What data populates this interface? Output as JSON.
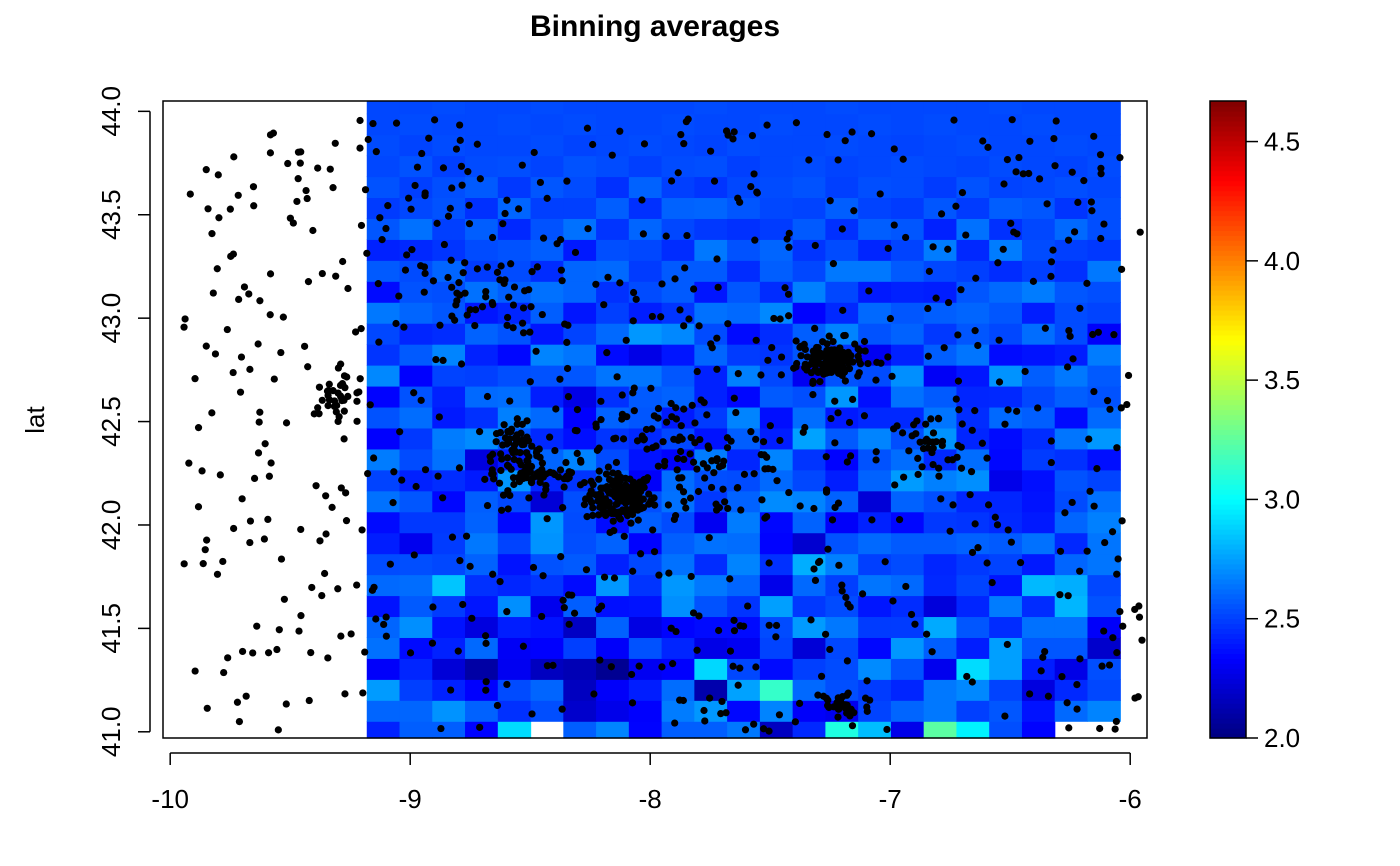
{
  "chart_data": {
    "type": "heatmap",
    "title": "Binning averages",
    "xlabel": "",
    "ylabel": "lat",
    "xlim": [
      -10.03,
      -5.93
    ],
    "ylim": [
      40.97,
      44.05
    ],
    "grid": false,
    "legend": "colorbar right",
    "x_ticks": [
      -10,
      -9,
      -8,
      -7,
      -6
    ],
    "x_tick_labels": [
      "-10",
      "-9",
      "-8",
      "-7",
      "-6"
    ],
    "y_ticks": [
      41.0,
      41.5,
      42.0,
      42.5,
      43.0,
      43.5,
      44.0
    ],
    "y_tick_labels": [
      "41.0",
      "41.5",
      "42.0",
      "42.5",
      "43.0",
      "43.5",
      "44.0"
    ],
    "colorbar": {
      "range": [
        2.0,
        4.67
      ],
      "ticks": [
        2.0,
        2.5,
        3.0,
        3.5,
        4.0,
        4.5
      ],
      "tick_labels": [
        "2.0",
        "2.5",
        "3.0",
        "3.5",
        "4.0",
        "4.5"
      ],
      "palette": [
        "#00007F",
        "#0000FF",
        "#007FFF",
        "#00FFFF",
        "#7FFF7F",
        "#FFFF00",
        "#FF7F00",
        "#FF0000",
        "#7F0000"
      ]
    },
    "bins": {
      "x0": -10.0,
      "y0": 40.95,
      "dx": 0.1365,
      "dy": 0.1013,
      "ncol": 29,
      "nrow": 31,
      "values": [
        [
          null,
          null,
          null,
          null,
          null,
          null,
          2.42,
          2.58,
          2.58,
          2.34,
          2.91,
          null,
          2.58,
          2.68,
          2.34,
          2.58,
          2.58,
          2.65,
          2.17,
          2.44,
          3.08,
          2.83,
          2.28,
          3.24,
          2.97,
          2.54,
          2.34,
          null,
          null
        ],
        [
          null,
          null,
          null,
          null,
          null,
          null,
          2.6,
          2.6,
          2.72,
          2.59,
          2.46,
          2.54,
          2.2,
          2.28,
          2.33,
          2.66,
          2.73,
          2.35,
          2.68,
          2.32,
          2.29,
          2.51,
          2.6,
          2.65,
          2.5,
          2.56,
          2.38,
          2.61,
          2.68
        ],
        [
          null,
          null,
          null,
          null,
          null,
          null,
          2.74,
          2.5,
          2.42,
          2.33,
          2.53,
          2.6,
          2.17,
          2.32,
          2.41,
          2.62,
          2.12,
          2.76,
          3.14,
          2.61,
          2.54,
          2.49,
          2.43,
          2.65,
          2.69,
          2.51,
          2.25,
          2.44,
          2.52
        ],
        [
          null,
          null,
          null,
          null,
          null,
          null,
          2.32,
          2.43,
          2.23,
          2.1,
          2.3,
          2.17,
          2.14,
          2.05,
          2.3,
          2.33,
          2.9,
          2.52,
          2.36,
          2.5,
          2.53,
          2.7,
          2.55,
          2.29,
          2.91,
          2.75,
          2.41,
          2.27,
          2.54
        ],
        [
          null,
          null,
          null,
          null,
          null,
          null,
          2.63,
          2.36,
          2.42,
          2.61,
          2.31,
          2.33,
          2.5,
          2.32,
          2.55,
          2.43,
          2.27,
          2.3,
          2.51,
          2.23,
          2.52,
          2.35,
          2.73,
          2.58,
          2.41,
          2.75,
          2.56,
          2.56,
          2.2
        ],
        [
          null,
          null,
          null,
          null,
          null,
          null,
          2.6,
          2.71,
          2.38,
          2.25,
          2.41,
          2.38,
          2.18,
          2.59,
          2.26,
          2.34,
          2.36,
          2.36,
          2.53,
          2.74,
          2.65,
          2.49,
          2.49,
          2.78,
          2.56,
          2.45,
          2.63,
          2.63,
          2.32
        ],
        [
          null,
          null,
          null,
          null,
          null,
          null,
          2.38,
          2.57,
          2.49,
          2.39,
          2.71,
          2.29,
          2.58,
          2.37,
          2.38,
          2.71,
          2.55,
          2.47,
          2.75,
          2.48,
          2.53,
          2.39,
          2.45,
          2.24,
          2.43,
          2.66,
          2.45,
          2.81,
          2.55
        ],
        [
          null,
          null,
          null,
          null,
          null,
          null,
          2.61,
          2.62,
          2.85,
          2.46,
          2.43,
          2.47,
          2.36,
          2.73,
          2.47,
          2.73,
          2.65,
          2.6,
          2.28,
          2.61,
          2.5,
          2.64,
          2.61,
          2.44,
          2.51,
          2.39,
          2.82,
          2.79,
          2.52
        ],
        [
          null,
          null,
          null,
          null,
          null,
          null,
          2.53,
          2.54,
          2.52,
          2.59,
          2.38,
          2.55,
          2.57,
          2.42,
          2.52,
          2.63,
          2.45,
          2.68,
          2.46,
          2.79,
          2.67,
          2.5,
          2.53,
          2.43,
          2.48,
          2.51,
          2.4,
          2.6,
          2.64
        ],
        [
          null,
          null,
          null,
          null,
          null,
          null,
          2.41,
          2.29,
          2.49,
          2.65,
          2.51,
          2.72,
          2.54,
          2.59,
          2.34,
          2.58,
          2.63,
          2.62,
          2.34,
          2.21,
          2.55,
          2.61,
          2.57,
          2.57,
          2.59,
          2.57,
          2.63,
          2.44,
          2.64
        ],
        [
          null,
          null,
          null,
          null,
          null,
          null,
          2.36,
          2.48,
          2.48,
          2.59,
          2.35,
          2.73,
          2.53,
          2.36,
          2.58,
          2.53,
          2.3,
          2.66,
          2.35,
          2.59,
          2.32,
          2.42,
          2.35,
          2.48,
          2.47,
          2.44,
          2.4,
          2.6,
          2.67
        ],
        [
          null,
          null,
          null,
          null,
          null,
          null,
          2.63,
          2.56,
          2.35,
          2.58,
          2.52,
          2.23,
          2.54,
          2.46,
          2.54,
          2.63,
          2.48,
          2.59,
          2.7,
          2.68,
          2.59,
          2.23,
          2.59,
          2.54,
          2.43,
          2.43,
          2.38,
          2.53,
          2.63
        ],
        [
          null,
          null,
          null,
          null,
          null,
          null,
          2.51,
          2.42,
          2.45,
          2.4,
          2.73,
          2.43,
          2.47,
          2.6,
          2.32,
          2.62,
          2.54,
          2.53,
          2.61,
          2.52,
          2.41,
          2.59,
          2.74,
          2.67,
          2.71,
          2.28,
          2.37,
          2.55,
          2.51
        ],
        [
          null,
          null,
          null,
          null,
          null,
          null,
          2.66,
          2.53,
          2.63,
          2.25,
          2.4,
          2.6,
          2.68,
          2.53,
          2.38,
          2.34,
          2.66,
          2.43,
          2.68,
          2.47,
          2.34,
          2.55,
          2.62,
          2.44,
          2.62,
          2.35,
          2.49,
          2.46,
          2.37
        ],
        [
          null,
          null,
          null,
          null,
          null,
          null,
          2.33,
          2.48,
          2.66,
          2.7,
          2.56,
          2.44,
          2.37,
          2.47,
          2.44,
          2.52,
          2.38,
          2.58,
          2.41,
          2.76,
          2.57,
          2.68,
          2.54,
          2.72,
          2.43,
          2.36,
          2.45,
          2.64,
          2.73
        ],
        [
          null,
          null,
          null,
          null,
          null,
          null,
          2.55,
          2.62,
          2.4,
          2.46,
          2.67,
          2.61,
          2.33,
          2.59,
          2.56,
          2.4,
          2.49,
          2.68,
          2.37,
          2.62,
          2.4,
          2.44,
          2.44,
          2.64,
          2.45,
          2.61,
          2.58,
          2.36,
          2.61
        ],
        [
          null,
          null,
          null,
          null,
          null,
          null,
          2.34,
          2.55,
          2.42,
          2.61,
          2.62,
          2.41,
          2.27,
          2.46,
          2.57,
          2.59,
          2.42,
          2.35,
          2.57,
          2.54,
          2.73,
          2.37,
          2.63,
          2.57,
          2.43,
          2.44,
          2.52,
          2.58,
          2.55
        ],
        [
          null,
          null,
          null,
          null,
          null,
          null,
          2.69,
          2.33,
          2.51,
          2.5,
          2.54,
          2.55,
          2.56,
          2.64,
          2.64,
          2.56,
          2.42,
          2.67,
          2.52,
          2.3,
          2.55,
          2.53,
          2.71,
          2.31,
          2.39,
          2.72,
          2.58,
          2.65,
          2.57
        ],
        [
          null,
          null,
          null,
          null,
          null,
          null,
          2.47,
          2.57,
          2.68,
          2.42,
          2.35,
          2.68,
          2.64,
          2.36,
          2.27,
          2.39,
          2.6,
          2.49,
          2.47,
          2.56,
          2.47,
          2.3,
          2.42,
          2.58,
          2.64,
          2.36,
          2.38,
          2.41,
          2.66
        ],
        [
          null,
          null,
          null,
          null,
          null,
          null,
          2.52,
          2.43,
          2.45,
          2.59,
          2.55,
          2.39,
          2.51,
          2.61,
          2.73,
          2.69,
          2.53,
          2.36,
          2.45,
          2.58,
          2.68,
          2.55,
          2.59,
          2.48,
          2.56,
          2.52,
          2.62,
          2.53,
          2.32
        ],
        [
          null,
          null,
          null,
          null,
          null,
          null,
          2.65,
          2.6,
          2.56,
          2.39,
          2.43,
          2.58,
          2.39,
          2.5,
          2.41,
          2.47,
          2.63,
          2.61,
          2.69,
          2.34,
          2.44,
          2.61,
          2.56,
          2.58,
          2.6,
          2.56,
          2.41,
          2.53,
          2.51
        ],
        [
          null,
          null,
          null,
          null,
          null,
          null,
          2.36,
          2.55,
          2.54,
          2.63,
          2.58,
          2.63,
          2.6,
          2.46,
          2.53,
          2.57,
          2.39,
          2.56,
          2.45,
          2.67,
          2.52,
          2.4,
          2.42,
          2.41,
          2.56,
          2.61,
          2.66,
          2.56,
          2.54
        ],
        [
          null,
          null,
          null,
          null,
          null,
          null,
          2.57,
          2.53,
          2.6,
          2.49,
          2.53,
          2.45,
          2.6,
          2.61,
          2.49,
          2.57,
          2.57,
          2.45,
          2.58,
          2.52,
          2.65,
          2.65,
          2.57,
          2.52,
          2.5,
          2.45,
          2.5,
          2.46,
          2.65
        ],
        [
          null,
          null,
          null,
          null,
          null,
          null,
          2.42,
          2.44,
          2.47,
          2.53,
          2.55,
          2.58,
          2.4,
          2.54,
          2.52,
          2.45,
          2.65,
          2.55,
          2.6,
          2.47,
          2.53,
          2.43,
          2.51,
          2.66,
          2.44,
          2.66,
          2.53,
          2.5,
          2.48
        ],
        [
          null,
          null,
          null,
          null,
          null,
          null,
          2.56,
          2.63,
          2.5,
          2.58,
          2.44,
          2.55,
          2.63,
          2.47,
          2.6,
          2.52,
          2.48,
          2.46,
          2.49,
          2.57,
          2.46,
          2.58,
          2.56,
          2.42,
          2.63,
          2.46,
          2.52,
          2.61,
          2.54
        ],
        [
          null,
          null,
          null,
          null,
          null,
          null,
          2.49,
          2.52,
          2.55,
          2.46,
          2.6,
          2.5,
          2.5,
          2.58,
          2.46,
          2.59,
          2.6,
          2.56,
          2.52,
          2.51,
          2.58,
          2.51,
          2.49,
          2.56,
          2.49,
          2.58,
          2.56,
          2.47,
          2.54
        ],
        [
          null,
          null,
          null,
          null,
          null,
          null,
          2.55,
          2.5,
          2.54,
          2.57,
          2.48,
          2.56,
          2.53,
          2.46,
          2.59,
          2.5,
          2.47,
          2.52,
          2.53,
          2.55,
          2.5,
          2.54,
          2.53,
          2.49,
          2.55,
          2.51,
          2.52,
          2.54,
          2.52
        ],
        [
          null,
          null,
          null,
          null,
          null,
          null,
          2.52,
          2.55,
          2.5,
          2.53,
          2.54,
          2.51,
          2.55,
          2.53,
          2.5,
          2.53,
          2.54,
          2.5,
          2.52,
          2.53,
          2.51,
          2.52,
          2.53,
          2.52,
          2.51,
          2.53,
          2.52,
          2.51,
          2.53
        ],
        [
          null,
          null,
          null,
          null,
          null,
          null,
          2.53,
          2.51,
          2.53,
          2.52,
          2.52,
          2.53,
          2.51,
          2.52,
          2.53,
          2.52,
          2.51,
          2.53,
          2.52,
          2.52,
          2.53,
          2.52,
          2.51,
          2.52,
          2.53,
          2.52,
          2.52,
          2.53,
          2.52
        ],
        [
          null,
          null,
          null,
          null,
          null,
          null,
          2.52,
          2.53,
          2.52,
          2.52,
          2.53,
          2.52,
          2.53,
          2.52,
          2.52,
          2.53,
          2.52,
          2.52,
          2.53,
          2.52,
          2.52,
          2.53,
          2.52,
          2.53,
          2.52,
          2.52,
          2.53,
          2.52,
          2.52
        ],
        [
          null,
          null,
          null,
          null,
          null,
          null,
          2.52,
          2.52,
          2.53,
          2.52,
          2.52,
          2.53,
          2.52,
          2.52,
          2.52,
          2.52,
          2.53,
          2.52,
          2.52,
          2.52,
          2.53,
          2.52,
          2.52,
          2.52,
          2.52,
          2.53,
          2.52,
          2.52,
          2.52
        ]
      ]
    },
    "points_note_free": true,
    "points": {
      "clusters": [
        {
          "x": -8.13,
          "y": 42.13,
          "sx": 0.07,
          "sy": 0.06,
          "n": 150
        },
        {
          "x": -7.25,
          "y": 42.8,
          "sx": 0.07,
          "sy": 0.05,
          "n": 130
        },
        {
          "x": -8.57,
          "y": 42.35,
          "sx": 0.06,
          "sy": 0.07,
          "n": 60
        },
        {
          "x": -8.45,
          "y": 42.25,
          "sx": 0.1,
          "sy": 0.04,
          "n": 50
        },
        {
          "x": -8.0,
          "y": 42.45,
          "sx": 0.15,
          "sy": 0.1,
          "n": 40
        },
        {
          "x": -7.7,
          "y": 42.25,
          "sx": 0.18,
          "sy": 0.12,
          "n": 60
        },
        {
          "x": -9.3,
          "y": 42.62,
          "sx": 0.06,
          "sy": 0.04,
          "n": 30
        },
        {
          "x": -8.7,
          "y": 43.1,
          "sx": 0.15,
          "sy": 0.08,
          "n": 40
        },
        {
          "x": -6.85,
          "y": 42.35,
          "sx": 0.1,
          "sy": 0.1,
          "n": 40
        },
        {
          "x": -7.2,
          "y": 41.12,
          "sx": 0.06,
          "sy": 0.05,
          "n": 30
        }
      ],
      "uniform_n": 700,
      "xrange": [
        -9.95,
        -5.95
      ],
      "yrange": [
        41.0,
        43.97
      ]
    }
  }
}
